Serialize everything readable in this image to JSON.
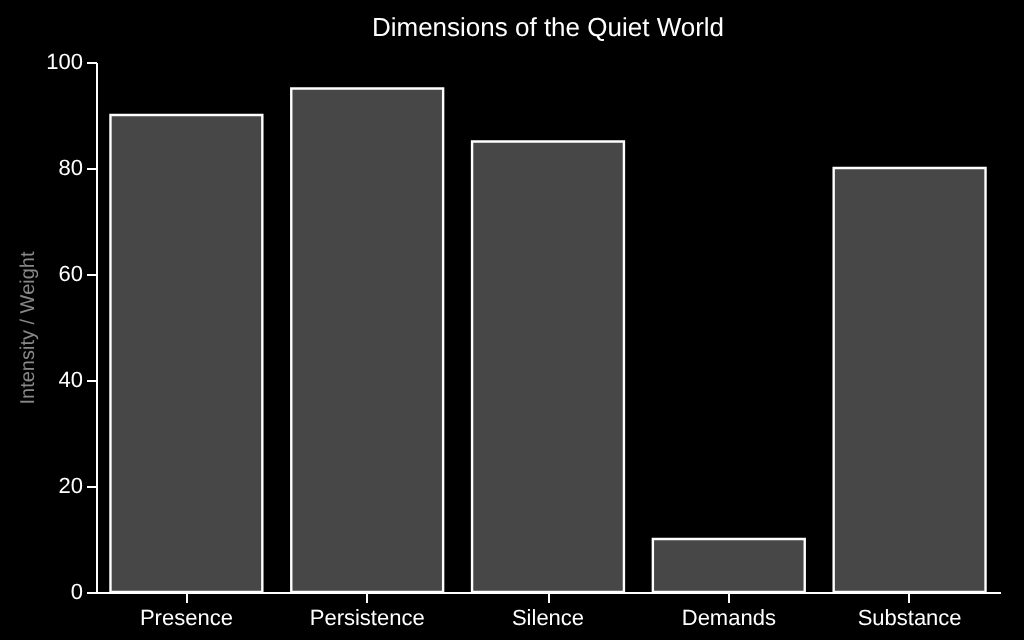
{
  "chart_data": {
    "type": "bar",
    "title": "Dimensions of the Quiet World",
    "ylabel": "Intensity / Weight",
    "categories": [
      "Presence",
      "Persistence",
      "Silence",
      "Demands",
      "Substance"
    ],
    "values": [
      90,
      95,
      85,
      10,
      80
    ],
    "color": "#474747",
    "ylim": [
      0,
      100
    ],
    "yticks": [
      0,
      20,
      40,
      60,
      80,
      100
    ],
    "grid": false
  }
}
